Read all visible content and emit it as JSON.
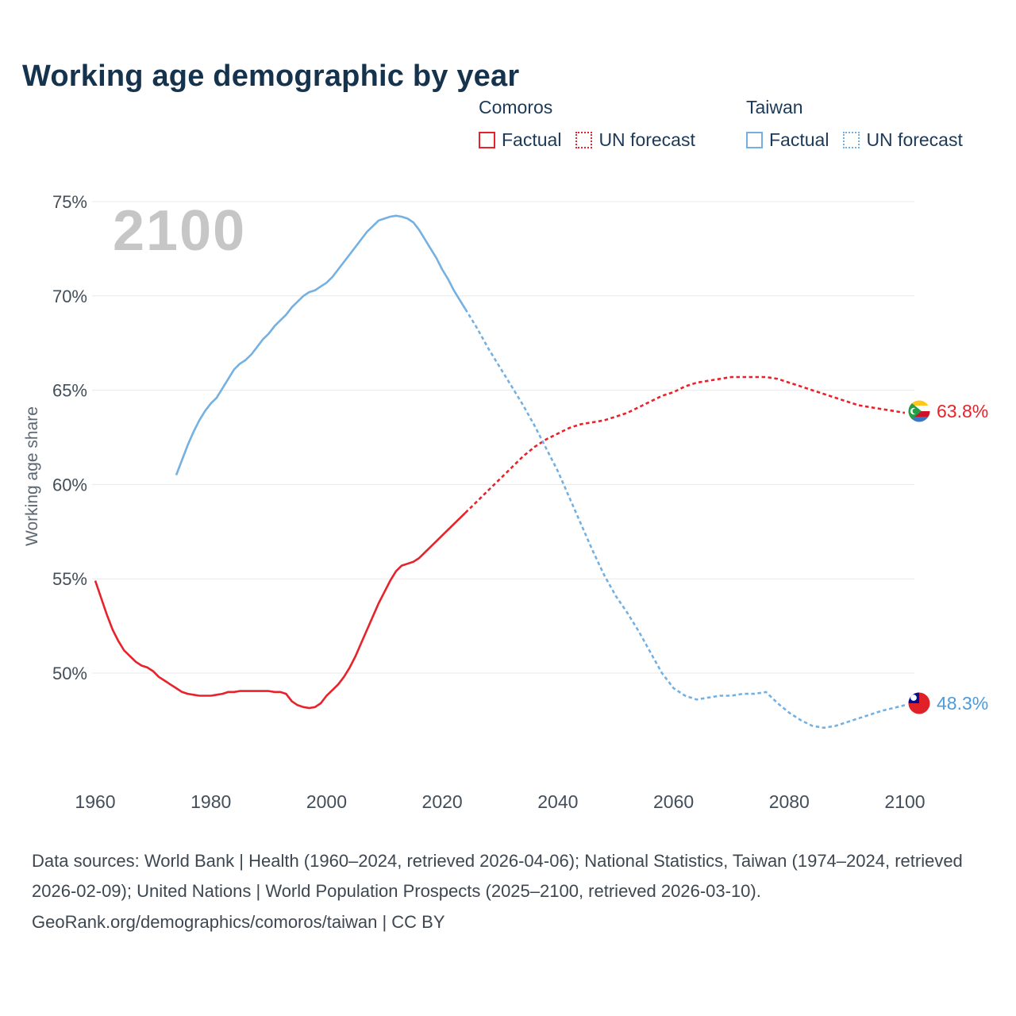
{
  "title": "Working age demographic by year",
  "watermark": "2100",
  "legend": {
    "groups": [
      {
        "name": "Comoros",
        "color": "#e8222a",
        "items": [
          {
            "label": "Factual",
            "style": "solid"
          },
          {
            "label": "UN forecast",
            "style": "dashed"
          }
        ]
      },
      {
        "name": "Taiwan",
        "color": "#74b1e2",
        "items": [
          {
            "label": "Factual",
            "style": "solid"
          },
          {
            "label": "UN forecast",
            "style": "dashed"
          }
        ]
      }
    ]
  },
  "y_axis": {
    "label": "Working age share"
  },
  "end_labels": [
    {
      "country": "Comoros",
      "value": "63.8%",
      "color": "#e8222a",
      "icon": "comoros-flag-icon"
    },
    {
      "country": "Taiwan",
      "value": "48.3%",
      "color": "#4f9bd9",
      "icon": "taiwan-flag-icon"
    }
  ],
  "footer": {
    "sources": "Data sources: World Bank | Health (1960–2024, retrieved 2026-04-06); National Statistics, Taiwan (1974–2024, retrieved 2026-02-09); United Nations | World Population Prospects (2025–2100, retrieved 2026-03-10).",
    "attribution": "GeoRank.org/demographics/comoros/taiwan | CC BY"
  },
  "chart_data": {
    "type": "line",
    "title": "Working age demographic by year",
    "xlabel": "",
    "ylabel": "Working age share",
    "x_range": [
      1960,
      2100
    ],
    "ylim": [
      46,
      76
    ],
    "y_ticks": [
      50,
      55,
      60,
      65,
      70,
      75
    ],
    "x_ticks": [
      1960,
      1980,
      2000,
      2020,
      2040,
      2060,
      2080,
      2100
    ],
    "grid": "horizontal",
    "legend_position": "top",
    "series": [
      {
        "name": "Comoros Factual",
        "color": "#e8222a",
        "style": "solid",
        "points": [
          [
            1960,
            54.9
          ],
          [
            1961,
            54.0
          ],
          [
            1962,
            53.1
          ],
          [
            1963,
            52.3
          ],
          [
            1964,
            51.7
          ],
          [
            1965,
            51.2
          ],
          [
            1966,
            50.9
          ],
          [
            1967,
            50.6
          ],
          [
            1968,
            50.4
          ],
          [
            1969,
            50.3
          ],
          [
            1970,
            50.1
          ],
          [
            1971,
            49.8
          ],
          [
            1972,
            49.6
          ],
          [
            1973,
            49.4
          ],
          [
            1974,
            49.2
          ],
          [
            1975,
            49.0
          ],
          [
            1976,
            48.9
          ],
          [
            1977,
            48.85
          ],
          [
            1978,
            48.8
          ],
          [
            1979,
            48.8
          ],
          [
            1980,
            48.8
          ],
          [
            1981,
            48.85
          ],
          [
            1982,
            48.9
          ],
          [
            1983,
            49.0
          ],
          [
            1984,
            49.0
          ],
          [
            1985,
            49.05
          ],
          [
            1986,
            49.05
          ],
          [
            1987,
            49.05
          ],
          [
            1988,
            49.05
          ],
          [
            1989,
            49.05
          ],
          [
            1990,
            49.05
          ],
          [
            1991,
            49.0
          ],
          [
            1992,
            49.0
          ],
          [
            1993,
            48.9
          ],
          [
            1994,
            48.5
          ],
          [
            1995,
            48.3
          ],
          [
            1996,
            48.2
          ],
          [
            1997,
            48.15
          ],
          [
            1998,
            48.2
          ],
          [
            1999,
            48.4
          ],
          [
            2000,
            48.8
          ],
          [
            2001,
            49.1
          ],
          [
            2002,
            49.4
          ],
          [
            2003,
            49.8
          ],
          [
            2004,
            50.3
          ],
          [
            2005,
            50.9
          ],
          [
            2006,
            51.6
          ],
          [
            2007,
            52.3
          ],
          [
            2008,
            53.0
          ],
          [
            2009,
            53.7
          ],
          [
            2010,
            54.3
          ],
          [
            2011,
            54.9
          ],
          [
            2012,
            55.4
          ],
          [
            2013,
            55.7
          ],
          [
            2014,
            55.8
          ],
          [
            2015,
            55.9
          ],
          [
            2016,
            56.1
          ],
          [
            2017,
            56.4
          ],
          [
            2018,
            56.7
          ],
          [
            2019,
            57.0
          ],
          [
            2020,
            57.3
          ],
          [
            2021,
            57.6
          ],
          [
            2022,
            57.9
          ],
          [
            2023,
            58.2
          ],
          [
            2024,
            58.5
          ]
        ]
      },
      {
        "name": "Comoros UN forecast",
        "color": "#e8222a",
        "style": "dashed",
        "points": [
          [
            2024,
            58.5
          ],
          [
            2026,
            59.1
          ],
          [
            2028,
            59.7
          ],
          [
            2030,
            60.3
          ],
          [
            2032,
            60.9
          ],
          [
            2034,
            61.5
          ],
          [
            2036,
            62.0
          ],
          [
            2038,
            62.4
          ],
          [
            2040,
            62.7
          ],
          [
            2042,
            63.0
          ],
          [
            2044,
            63.2
          ],
          [
            2046,
            63.3
          ],
          [
            2048,
            63.4
          ],
          [
            2050,
            63.6
          ],
          [
            2052,
            63.8
          ],
          [
            2054,
            64.1
          ],
          [
            2056,
            64.4
          ],
          [
            2058,
            64.7
          ],
          [
            2060,
            64.9
          ],
          [
            2062,
            65.2
          ],
          [
            2064,
            65.4
          ],
          [
            2066,
            65.5
          ],
          [
            2068,
            65.6
          ],
          [
            2070,
            65.7
          ],
          [
            2072,
            65.7
          ],
          [
            2074,
            65.7
          ],
          [
            2076,
            65.7
          ],
          [
            2078,
            65.6
          ],
          [
            2080,
            65.4
          ],
          [
            2082,
            65.2
          ],
          [
            2084,
            65.0
          ],
          [
            2086,
            64.8
          ],
          [
            2088,
            64.6
          ],
          [
            2090,
            64.4
          ],
          [
            2092,
            64.2
          ],
          [
            2094,
            64.1
          ],
          [
            2096,
            64.0
          ],
          [
            2098,
            63.9
          ],
          [
            2100,
            63.8
          ]
        ]
      },
      {
        "name": "Taiwan Factual",
        "color": "#74b1e2",
        "style": "solid",
        "points": [
          [
            1974,
            60.5
          ],
          [
            1975,
            61.3
          ],
          [
            1976,
            62.1
          ],
          [
            1977,
            62.8
          ],
          [
            1978,
            63.4
          ],
          [
            1979,
            63.9
          ],
          [
            1980,
            64.3
          ],
          [
            1981,
            64.6
          ],
          [
            1982,
            65.1
          ],
          [
            1983,
            65.6
          ],
          [
            1984,
            66.1
          ],
          [
            1985,
            66.4
          ],
          [
            1986,
            66.6
          ],
          [
            1987,
            66.9
          ],
          [
            1988,
            67.3
          ],
          [
            1989,
            67.7
          ],
          [
            1990,
            68.0
          ],
          [
            1991,
            68.4
          ],
          [
            1992,
            68.7
          ],
          [
            1993,
            69.0
          ],
          [
            1994,
            69.4
          ],
          [
            1995,
            69.7
          ],
          [
            1996,
            70.0
          ],
          [
            1997,
            70.2
          ],
          [
            1998,
            70.3
          ],
          [
            1999,
            70.5
          ],
          [
            2000,
            70.7
          ],
          [
            2001,
            71.0
          ],
          [
            2002,
            71.4
          ],
          [
            2003,
            71.8
          ],
          [
            2004,
            72.2
          ],
          [
            2005,
            72.6
          ],
          [
            2006,
            73.0
          ],
          [
            2007,
            73.4
          ],
          [
            2008,
            73.7
          ],
          [
            2009,
            74.0
          ],
          [
            2010,
            74.1
          ],
          [
            2011,
            74.2
          ],
          [
            2012,
            74.25
          ],
          [
            2013,
            74.2
          ],
          [
            2014,
            74.1
          ],
          [
            2015,
            73.9
          ],
          [
            2016,
            73.5
          ],
          [
            2017,
            73.0
          ],
          [
            2018,
            72.5
          ],
          [
            2019,
            72.0
          ],
          [
            2020,
            71.4
          ],
          [
            2021,
            70.9
          ],
          [
            2022,
            70.3
          ],
          [
            2023,
            69.8
          ],
          [
            2024,
            69.3
          ]
        ]
      },
      {
        "name": "Taiwan UN forecast",
        "color": "#74b1e2",
        "style": "dashed",
        "points": [
          [
            2024,
            69.3
          ],
          [
            2026,
            68.3
          ],
          [
            2028,
            67.2
          ],
          [
            2030,
            66.2
          ],
          [
            2032,
            65.2
          ],
          [
            2034,
            64.2
          ],
          [
            2036,
            63.1
          ],
          [
            2038,
            61.9
          ],
          [
            2040,
            60.7
          ],
          [
            2042,
            59.3
          ],
          [
            2044,
            57.9
          ],
          [
            2046,
            56.5
          ],
          [
            2048,
            55.2
          ],
          [
            2050,
            54.1
          ],
          [
            2052,
            53.2
          ],
          [
            2054,
            52.2
          ],
          [
            2056,
            51.1
          ],
          [
            2058,
            50.0
          ],
          [
            2060,
            49.2
          ],
          [
            2062,
            48.8
          ],
          [
            2064,
            48.6
          ],
          [
            2066,
            48.7
          ],
          [
            2068,
            48.8
          ],
          [
            2070,
            48.8
          ],
          [
            2072,
            48.9
          ],
          [
            2074,
            48.9
          ],
          [
            2076,
            49.0
          ],
          [
            2078,
            48.4
          ],
          [
            2080,
            47.9
          ],
          [
            2082,
            47.5
          ],
          [
            2084,
            47.2
          ],
          [
            2086,
            47.1
          ],
          [
            2088,
            47.2
          ],
          [
            2090,
            47.4
          ],
          [
            2092,
            47.6
          ],
          [
            2094,
            47.8
          ],
          [
            2096,
            48.0
          ],
          [
            2098,
            48.15
          ],
          [
            2100,
            48.3
          ]
        ]
      }
    ]
  }
}
